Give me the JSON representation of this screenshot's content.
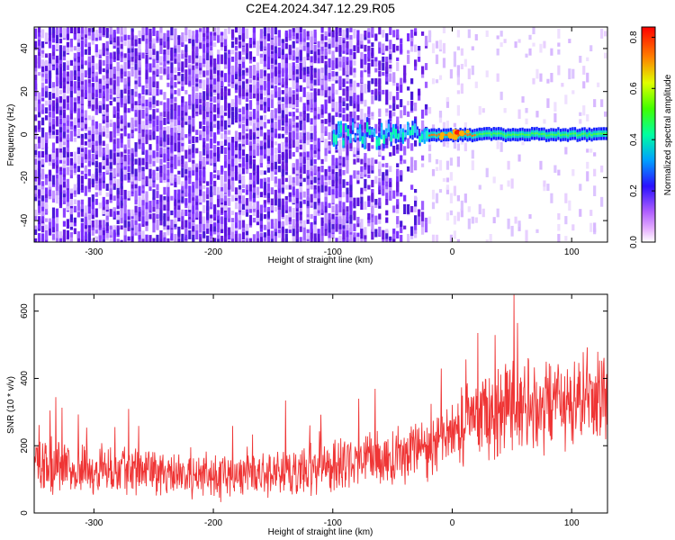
{
  "title": "C2E4.2024.347.12.29.R05",
  "colors": {
    "bar_red": "#ff0000",
    "snr_red": "#ef3535",
    "noise_purple": "#6a1de0",
    "axis": "#000000"
  },
  "chart_data": [
    {
      "type": "heatmap",
      "xlabel": "Height of straight line (km)",
      "ylabel": "Frequency (Hz)",
      "xlim": [
        -350,
        130
      ],
      "ylim": [
        -50,
        50
      ],
      "xticks": [
        -300,
        -200,
        -100,
        0,
        100
      ],
      "yticks": [
        -40,
        -20,
        0,
        20,
        40
      ],
      "xtick_labels": [
        "-300",
        "-200",
        "-100",
        "0",
        "100"
      ],
      "ytick_labels": [
        "-40",
        "-20",
        "0",
        "20",
        "40"
      ],
      "signal_band": {
        "x_start": -100,
        "x_end": 130,
        "center_hz": 0,
        "halfwidth_hz": 3
      },
      "noise_fade": {
        "dense_until": -20,
        "sparse_after": 20
      },
      "colorbar": {
        "label": "Normalized spectral amplitude",
        "range": [
          0,
          0.84
        ],
        "ticks": [
          0.0,
          0.2,
          0.4,
          0.6,
          0.8
        ],
        "tick_labels": [
          "0.0",
          "0.2",
          "0.4",
          "0.6",
          "0.8"
        ]
      }
    },
    {
      "type": "line",
      "xlabel": "Height of straight line (km)",
      "ylabel": "SNR (10 * v/v)",
      "xlim": [
        -350,
        130
      ],
      "ylim": [
        0,
        650
      ],
      "xticks": [
        -300,
        -200,
        -100,
        0,
        100
      ],
      "yticks": [
        0,
        200,
        400,
        600
      ],
      "xtick_labels": [
        "-300",
        "-200",
        "-100",
        "0",
        "100"
      ],
      "ytick_labels": [
        "0",
        "200",
        "400",
        "600"
      ],
      "envelope": {
        "x": [
          -350,
          -300,
          -250,
          -200,
          -150,
          -100,
          -50,
          -25,
          0,
          25,
          50,
          100,
          130
        ],
        "mean": [
          140,
          130,
          120,
          110,
          120,
          135,
          160,
          190,
          240,
          300,
          310,
          320,
          330
        ],
        "spread": [
          100,
          95,
          90,
          85,
          90,
          95,
          105,
          115,
          140,
          150,
          160,
          165,
          165
        ]
      }
    }
  ]
}
